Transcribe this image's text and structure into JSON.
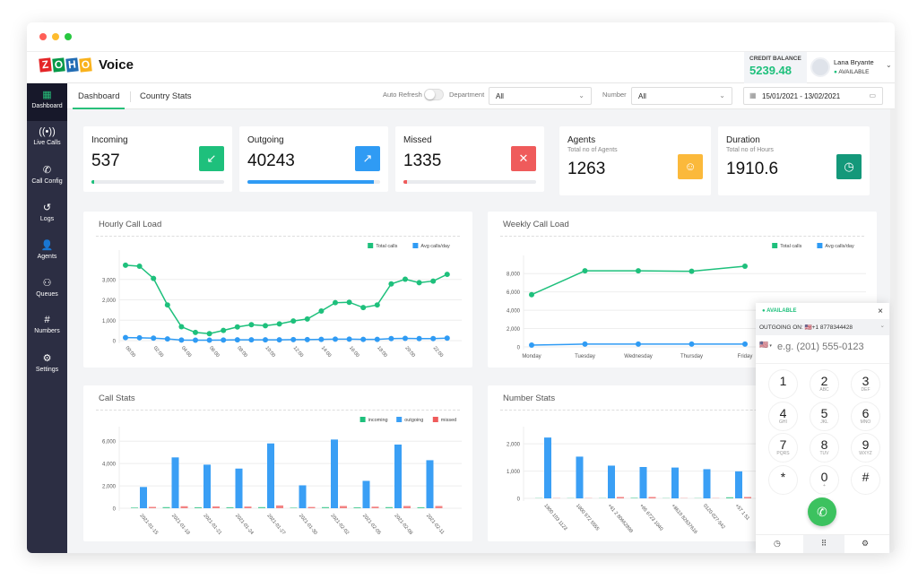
{
  "window": {
    "controls": [
      "#ff5f57",
      "#febc2e",
      "#28c840"
    ]
  },
  "header": {
    "brand_letters": [
      "Z",
      "O",
      "H",
      "O"
    ],
    "brand_colors": [
      "#e42527",
      "#089949",
      "#226db4",
      "#f9b21d"
    ],
    "product": "Voice",
    "credit_label": "CREDIT BALANCE",
    "credit_value": "5239.48",
    "user_name": "Lana Bryante",
    "user_status": "AVAILABLE"
  },
  "sidebar": {
    "items": [
      {
        "label": "Dashboard",
        "icon": "grid-icon",
        "glyph": "▦",
        "active": true
      },
      {
        "label": "Live Calls",
        "icon": "broadcast-icon",
        "glyph": "((•))"
      },
      {
        "label": "Call Config",
        "icon": "phone-icon",
        "glyph": "✆"
      },
      {
        "label": "Logs",
        "icon": "history-icon",
        "glyph": "↺"
      },
      {
        "label": "Agents",
        "icon": "user-icon",
        "glyph": "👤"
      },
      {
        "label": "Queues",
        "icon": "people-icon",
        "glyph": "⚇"
      },
      {
        "label": "Numbers",
        "icon": "hash-icon",
        "glyph": "#"
      },
      {
        "label": "Settings",
        "icon": "gear-icon",
        "glyph": "⚙"
      }
    ]
  },
  "tabs": [
    {
      "label": "Dashboard",
      "active": true
    },
    {
      "label": "Country Stats"
    }
  ],
  "filters": {
    "auto_refresh_label": "Auto Refresh",
    "auto_refresh_on": false,
    "department_label": "Department",
    "department_value": "All",
    "number_label": "Number",
    "number_value": "All",
    "date_range": "15/01/2021 - 13/02/2021"
  },
  "stats": [
    {
      "title": "Incoming",
      "value": "537",
      "icon": "incoming-call-icon",
      "glyph": "↙",
      "color": "#1ec07c",
      "progress": 2
    },
    {
      "title": "Outgoing",
      "value": "40243",
      "icon": "outgoing-call-icon",
      "glyph": "↗",
      "color": "#2f9bf4",
      "progress": 95
    },
    {
      "title": "Missed",
      "value": "1335",
      "icon": "missed-call-icon",
      "glyph": "✕",
      "color": "#ef5b5b",
      "progress": 3
    },
    {
      "title": "Agents",
      "subtitle": "Total no of Agents",
      "value": "1263",
      "icon": "agent-icon",
      "glyph": "☺",
      "color": "#fbb93b"
    },
    {
      "title": "Duration",
      "subtitle": "Total no of Hours",
      "value": "1910.6",
      "icon": "clock-icon",
      "glyph": "◷",
      "color": "#14987a"
    }
  ],
  "chart_data": [
    {
      "id": "hourly",
      "type": "line",
      "title": "Hourly Call Load",
      "ylim": [
        0,
        4000
      ],
      "yticks": [
        0,
        1000,
        2000,
        3000
      ],
      "ytick_labels": [
        "0",
        "1,000",
        "2,000",
        "3,000"
      ],
      "grid": true,
      "legend": "top-right",
      "categories": [
        "00:00",
        "01:00",
        "02:00",
        "03:00",
        "04:00",
        "05:00",
        "06:00",
        "07:00",
        "08:00",
        "09:00",
        "10:00",
        "11:00",
        "12:00",
        "13:00",
        "14:00",
        "15:00",
        "16:00",
        "17:00",
        "18:00",
        "19:00",
        "20:00",
        "21:00",
        "22:00",
        "23:00"
      ],
      "tick_labels": [
        "00:00",
        "",
        "02:00",
        "",
        "04:00",
        "",
        "06:00",
        "",
        "08:00",
        "",
        "10:00",
        "",
        "12:00",
        "",
        "14:00",
        "",
        "16:00",
        "",
        "18:00",
        "",
        "20:00",
        "",
        "22:00",
        ""
      ],
      "series": [
        {
          "name": "Total calls",
          "color": "#1ec07c",
          "values": [
            3700,
            3650,
            3050,
            1750,
            680,
            400,
            340,
            500,
            670,
            780,
            730,
            820,
            960,
            1060,
            1450,
            1860,
            1880,
            1620,
            1750,
            2780,
            3010,
            2840,
            2920,
            3250
          ]
        },
        {
          "name": "Avg calls/day",
          "color": "#2f9bf4",
          "values": [
            150,
            140,
            120,
            80,
            30,
            20,
            20,
            30,
            40,
            40,
            40,
            40,
            50,
            50,
            60,
            70,
            70,
            60,
            60,
            100,
            110,
            100,
            100,
            120
          ]
        }
      ]
    },
    {
      "id": "weekly",
      "type": "line",
      "title": "Weekly Call Load",
      "ylim": [
        0,
        9000
      ],
      "yticks": [
        0,
        2000,
        4000,
        6000,
        8000
      ],
      "ytick_labels": [
        "0",
        "2,000",
        "4,000",
        "6,000",
        "8,000"
      ],
      "grid": true,
      "legend": "top-right",
      "categories": [
        "Monday",
        "Tuesday",
        "Wednesday",
        "Thursday",
        "Friday"
      ],
      "series": [
        {
          "name": "Total calls",
          "color": "#1ec07c",
          "values": [
            5700,
            8300,
            8300,
            8250,
            8800
          ]
        },
        {
          "name": "Avg calls/day",
          "color": "#2f9bf4",
          "values": [
            200,
            300,
            300,
            300,
            300
          ]
        }
      ]
    },
    {
      "id": "callstats",
      "type": "bar",
      "title": "Call Stats",
      "ylim": [
        0,
        6500
      ],
      "yticks": [
        0,
        2000,
        4000,
        6000
      ],
      "ytick_labels": [
        "0",
        "2,000",
        "4,000",
        "6,000"
      ],
      "grid": true,
      "legend": "top-right",
      "categories": [
        "2021-01-15",
        "2021-01-18",
        "2021-01-21",
        "2021-01-24",
        "2021-01-27",
        "2021-01-30",
        "2021-02-02",
        "2021-02-05",
        "2021-02-08",
        "2021-02-11"
      ],
      "series": [
        {
          "name": "incoming",
          "color": "#1ec07c",
          "values": [
            60,
            100,
            90,
            90,
            100,
            50,
            100,
            80,
            100,
            90
          ]
        },
        {
          "name": "outgoing",
          "color": "#3a9ff5",
          "values": [
            1900,
            4550,
            3900,
            3550,
            5800,
            2050,
            6150,
            2450,
            5700,
            4300
          ]
        },
        {
          "name": "missed",
          "color": "#ef5b5b",
          "values": [
            120,
            180,
            160,
            150,
            250,
            110,
            200,
            140,
            200,
            200
          ]
        }
      ]
    },
    {
      "id": "numberstats",
      "type": "bar",
      "title": "Number Stats",
      "ylim": [
        0,
        2300
      ],
      "yticks": [
        0,
        1000,
        2000
      ],
      "ytick_labels": [
        "0",
        "1,000",
        "2,000"
      ],
      "grid": true,
      "categories": [
        "1800 103 1123",
        "1800 572 5555",
        "+61 2 80662898",
        "+65 6723 1040",
        "+8610 82637616",
        "0120-027-542",
        "+57 1 51"
      ],
      "series": [
        {
          "name": "incoming",
          "color": "#1ec07c",
          "values": [
            0,
            0,
            0,
            20,
            0,
            0,
            40
          ]
        },
        {
          "name": "outgoing",
          "color": "#3a9ff5",
          "values": [
            2230,
            1530,
            1200,
            1150,
            1130,
            1070,
            990
          ]
        },
        {
          "name": "missed",
          "color": "#ef5b5b",
          "values": [
            0,
            0,
            50,
            50,
            0,
            0,
            50
          ]
        }
      ]
    }
  ],
  "dialer": {
    "status": "AVAILABLE",
    "outgoing_label": "OUTGOING ON:",
    "outgoing_number": "🇺🇸+1 8778344428",
    "flag": "🇺🇸",
    "placeholder": "e.g. (201) 555-0123",
    "keys": [
      {
        "d": "1",
        "s": ""
      },
      {
        "d": "2",
        "s": "ABC"
      },
      {
        "d": "3",
        "s": "DEF"
      },
      {
        "d": "4",
        "s": "GHI"
      },
      {
        "d": "5",
        "s": "JKL"
      },
      {
        "d": "6",
        "s": "MNO"
      },
      {
        "d": "7",
        "s": "PQRS"
      },
      {
        "d": "8",
        "s": "TUV"
      },
      {
        "d": "9",
        "s": "WXYZ"
      },
      {
        "d": "*",
        "s": ""
      },
      {
        "d": "0",
        "s": "+"
      },
      {
        "d": "#",
        "s": ""
      }
    ],
    "call_color": "#3cc25f"
  }
}
